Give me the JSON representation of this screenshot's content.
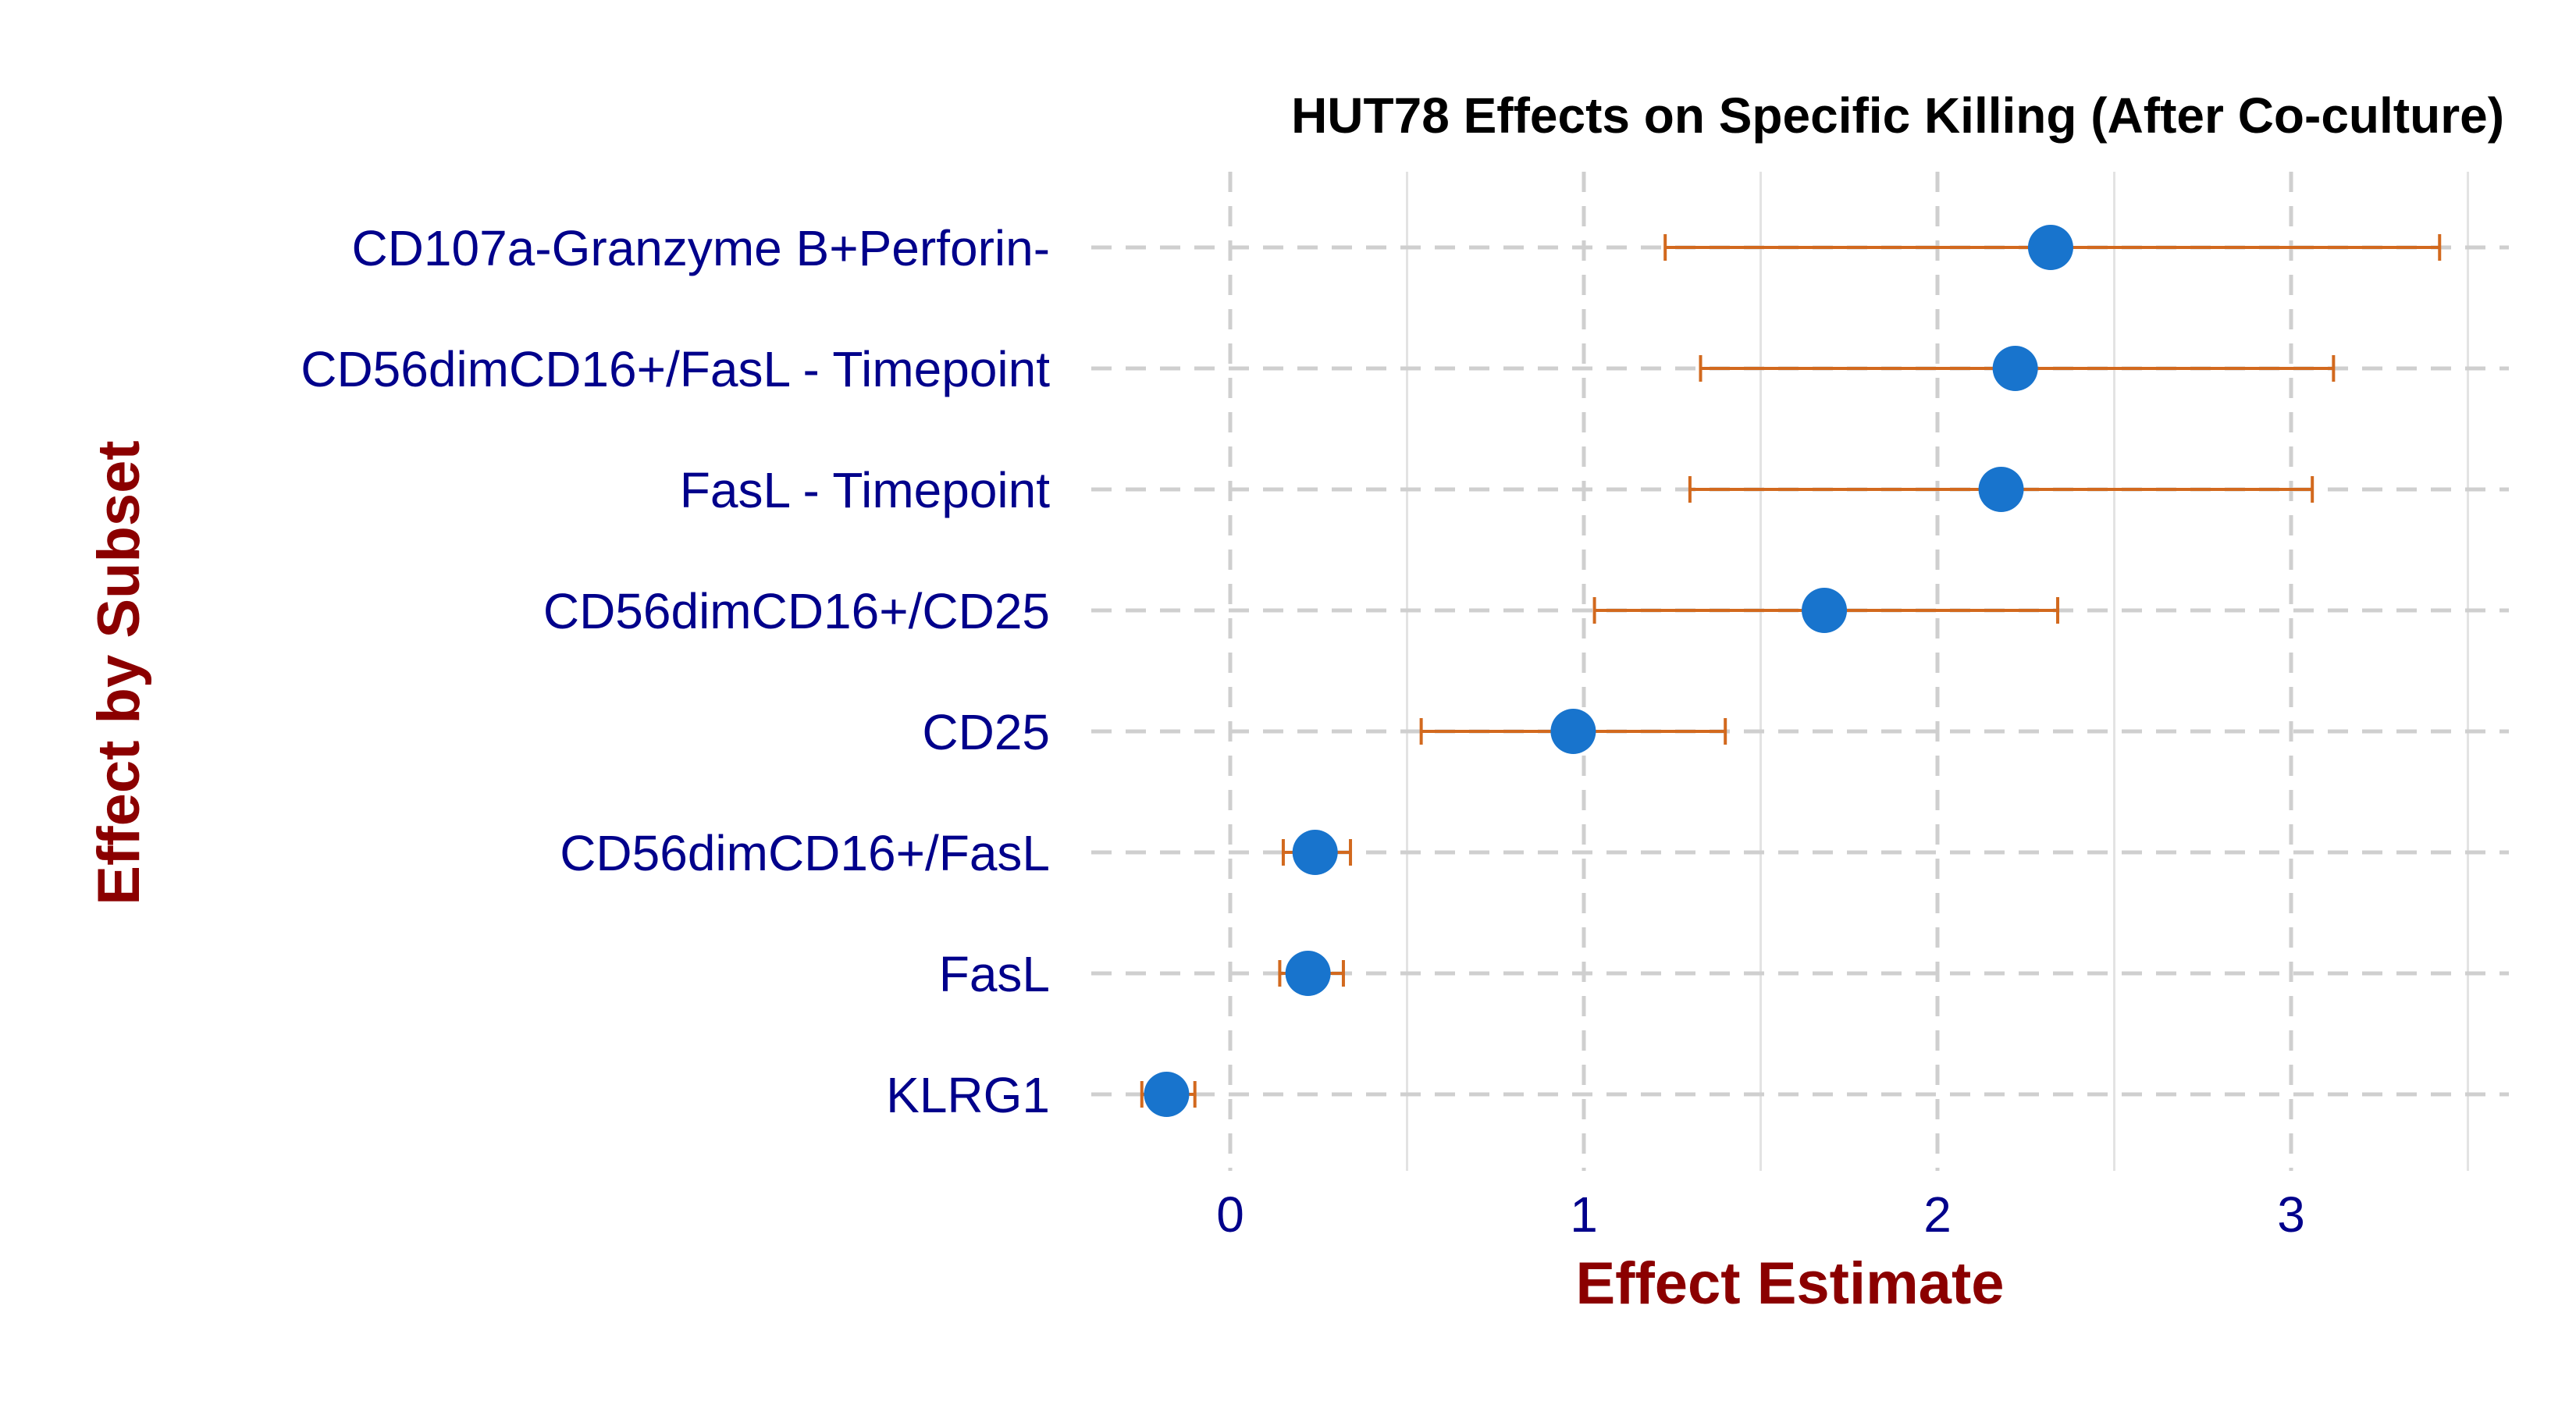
{
  "chart_data": {
    "type": "forest",
    "title": "HUT78 Effects on Specific Killing (After Co-culture)",
    "xlabel": "Effect Estimate",
    "ylabel": "Effect by Subset",
    "xlim": [
      -0.45,
      3.55
    ],
    "xticks": [
      0,
      1,
      2,
      3
    ],
    "grid": true,
    "point_color": "#1874cd",
    "errorbar_color": "#d2691e",
    "label_color": "#00008b",
    "axis_title_color": "#8b0000",
    "categories": [
      "CD107a-Granzyme B+Perforin-",
      "CD56dimCD16+/FasL - Timepoint",
      "FasL - Timepoint",
      "CD56dimCD16+/CD25",
      "CD25",
      "CD56dimCD16+/FasL",
      "FasL",
      "KLRG1"
    ],
    "estimates": [
      2.32,
      2.22,
      2.18,
      1.68,
      0.97,
      0.24,
      0.22,
      -0.18
    ],
    "lower": [
      1.23,
      1.33,
      1.3,
      1.03,
      0.54,
      0.15,
      0.14,
      -0.25
    ],
    "upper": [
      3.42,
      3.12,
      3.06,
      2.34,
      1.4,
      0.34,
      0.32,
      -0.1
    ]
  }
}
